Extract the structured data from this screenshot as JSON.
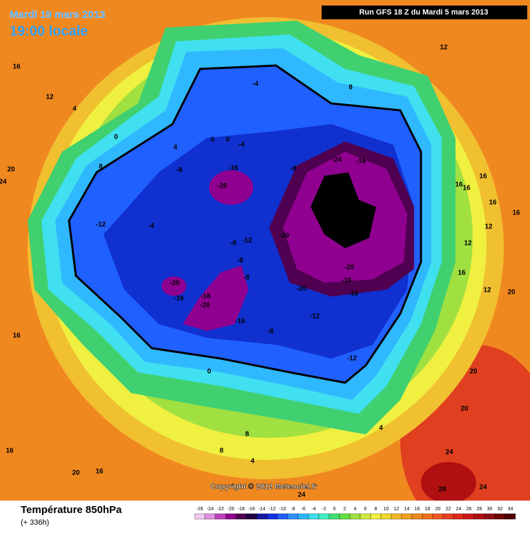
{
  "header": {
    "date": "Mardi 19 mars 2013",
    "time": "19:00 locale",
    "run": "Run GFS 18 Z du Mardi 5 mars 2013"
  },
  "copyright": "Copyright © 2012 Meteociel.fr",
  "footer": {
    "title": "Température 850hPa",
    "lead": "(+ 336h)"
  },
  "scale": {
    "values": [
      -26,
      -24,
      -22,
      -20,
      -18,
      -16,
      -14,
      -12,
      -10,
      -8,
      -6,
      -4,
      -2,
      0,
      2,
      4,
      6,
      8,
      10,
      12,
      14,
      16,
      18,
      20,
      22,
      24,
      26,
      28,
      30,
      32,
      34
    ],
    "colors": [
      "#f0c8f0",
      "#e090e0",
      "#c040c0",
      "#900090",
      "#500050",
      "#200040",
      "#1818a0",
      "#1030e0",
      "#2060ff",
      "#3090ff",
      "#30b8ff",
      "#40e0f0",
      "#40f0c0",
      "#40e070",
      "#60e040",
      "#a0e040",
      "#d0e840",
      "#f0f040",
      "#f0d830",
      "#f0b828",
      "#f0a020",
      "#f08820",
      "#f07020",
      "#f05820",
      "#e84020",
      "#e02818",
      "#d01818",
      "#b01010",
      "#901010",
      "#700808",
      "#500000"
    ]
  },
  "map_labels": [
    "16",
    "12",
    "4",
    "0",
    "4",
    "8",
    "20",
    "24",
    "-8",
    "-16",
    "-20",
    "-4",
    "8",
    "12",
    "-24",
    "-16",
    "-8",
    "-28",
    "-24",
    "-28",
    "-12",
    "-4",
    "-8",
    "-12",
    "-20",
    "-8",
    "-20",
    "-16",
    "-8",
    "-16",
    "-20",
    "-20",
    "-20",
    "-16",
    "-16",
    "-12",
    "-16",
    "-8",
    "-12",
    "0",
    "16",
    "16",
    "16",
    "16",
    "16",
    "12",
    "12",
    "16",
    "12",
    "20",
    "16",
    "20",
    "20",
    "24",
    "24",
    "28",
    "24",
    "16",
    "20",
    "16",
    "8",
    "8",
    "4",
    "4",
    "0",
    "0",
    "-4"
  ]
}
